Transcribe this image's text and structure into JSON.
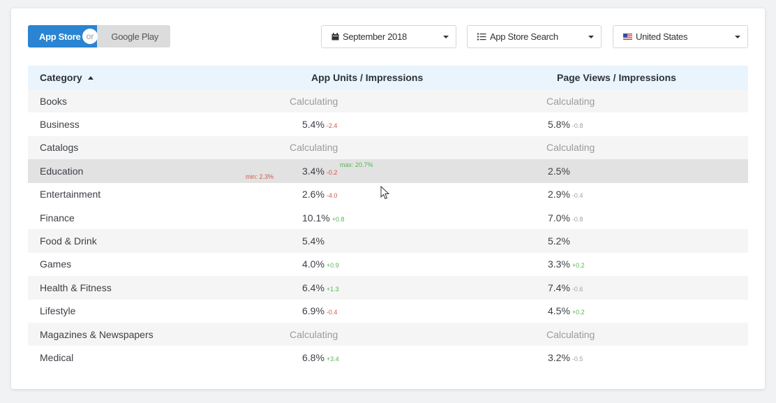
{
  "toggle": {
    "active": "App Store",
    "or": "or",
    "inactive": "Google Play"
  },
  "filters": {
    "date": "September 2018",
    "source": "App Store Search",
    "country": "United States"
  },
  "table": {
    "headers": {
      "category": "Category",
      "app_units": "App Units / Impressions",
      "page_views": "Page Views / Impressions"
    },
    "rows": [
      {
        "category": "Books",
        "a": "Calculating",
        "a_delta": "",
        "b": "Calculating",
        "b_delta": ""
      },
      {
        "category": "Business",
        "a": "5.4%",
        "a_delta": "-2.4",
        "b": "5.8%",
        "b_delta": "-0.8"
      },
      {
        "category": "Catalogs",
        "a": "Calculating",
        "a_delta": "",
        "b": "Calculating",
        "b_delta": ""
      },
      {
        "category": "Education",
        "a": "3.4%",
        "a_delta": "-0.2",
        "b": "2.5%",
        "b_delta": "",
        "min": "min: 2.3%",
        "max": "max: 20.7%"
      },
      {
        "category": "Entertainment",
        "a": "2.6%",
        "a_delta": "-4.0",
        "b": "2.9%",
        "b_delta": "-0.4"
      },
      {
        "category": "Finance",
        "a": "10.1%",
        "a_delta": "+0.8",
        "b": "7.0%",
        "b_delta": "-0.8"
      },
      {
        "category": "Food & Drink",
        "a": "5.4%",
        "a_delta": "",
        "b": "5.2%",
        "b_delta": ""
      },
      {
        "category": "Games",
        "a": "4.0%",
        "a_delta": "+0.9",
        "b": "3.3%",
        "b_delta": "+0.2"
      },
      {
        "category": "Health & Fitness",
        "a": "6.4%",
        "a_delta": "+1.3",
        "b": "7.4%",
        "b_delta": "-0.6"
      },
      {
        "category": "Lifestyle",
        "a": "6.9%",
        "a_delta": "-0.4",
        "b": "4.5%",
        "b_delta": "+0.2"
      },
      {
        "category": "Magazines & Newspapers",
        "a": "Calculating",
        "a_delta": "",
        "b": "Calculating",
        "b_delta": ""
      },
      {
        "category": "Medical",
        "a": "6.8%",
        "a_delta": "+3.4",
        "b": "3.2%",
        "b_delta": "-0.5"
      }
    ]
  },
  "colors": {
    "accent": "#2a84d2",
    "header_bg": "#e9f4fc",
    "neg": "#d2574f",
    "pos": "#56b451"
  },
  "icons": {
    "date": "calendar-icon",
    "source": "list-icon",
    "country": "us-flag-icon",
    "dropdown": "caret-down-icon",
    "sort": "sort-asc-icon"
  }
}
